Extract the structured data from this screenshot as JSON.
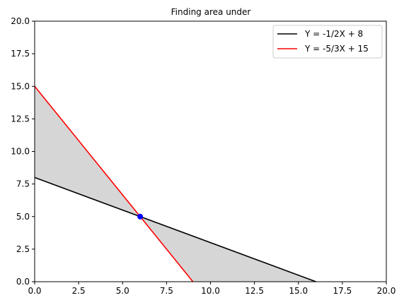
{
  "chart_data": {
    "type": "line",
    "title": "Finding area under",
    "xlabel": "",
    "ylabel": "",
    "xlim": [
      0,
      20
    ],
    "ylim": [
      0,
      20
    ],
    "xticks": [
      "0.0",
      "2.5",
      "5.0",
      "7.5",
      "10.0",
      "12.5",
      "15.0",
      "17.5",
      "20.0"
    ],
    "yticks": [
      "0.0",
      "2.5",
      "5.0",
      "7.5",
      "10.0",
      "12.5",
      "15.0",
      "17.5",
      "20.0"
    ],
    "grid": false,
    "legend_position": "top-right",
    "series": [
      {
        "name": "Y = -1/2X + 8",
        "color": "#000000",
        "x": [
          0,
          16
        ],
        "y": [
          8,
          0
        ]
      },
      {
        "name": "Y = -5/3X + 15",
        "color": "#ff0000",
        "x": [
          0,
          9
        ],
        "y": [
          15,
          0
        ]
      }
    ],
    "shaded_regions": [
      {
        "color": "#d6d6d6",
        "points": [
          [
            0,
            15
          ],
          [
            6,
            5
          ],
          [
            0,
            8
          ]
        ]
      },
      {
        "color": "#d6d6d6",
        "points": [
          [
            6,
            5
          ],
          [
            16,
            0
          ],
          [
            9,
            0
          ]
        ]
      }
    ],
    "intersection_point": {
      "x": 6,
      "y": 5,
      "color": "#0000ff"
    }
  }
}
